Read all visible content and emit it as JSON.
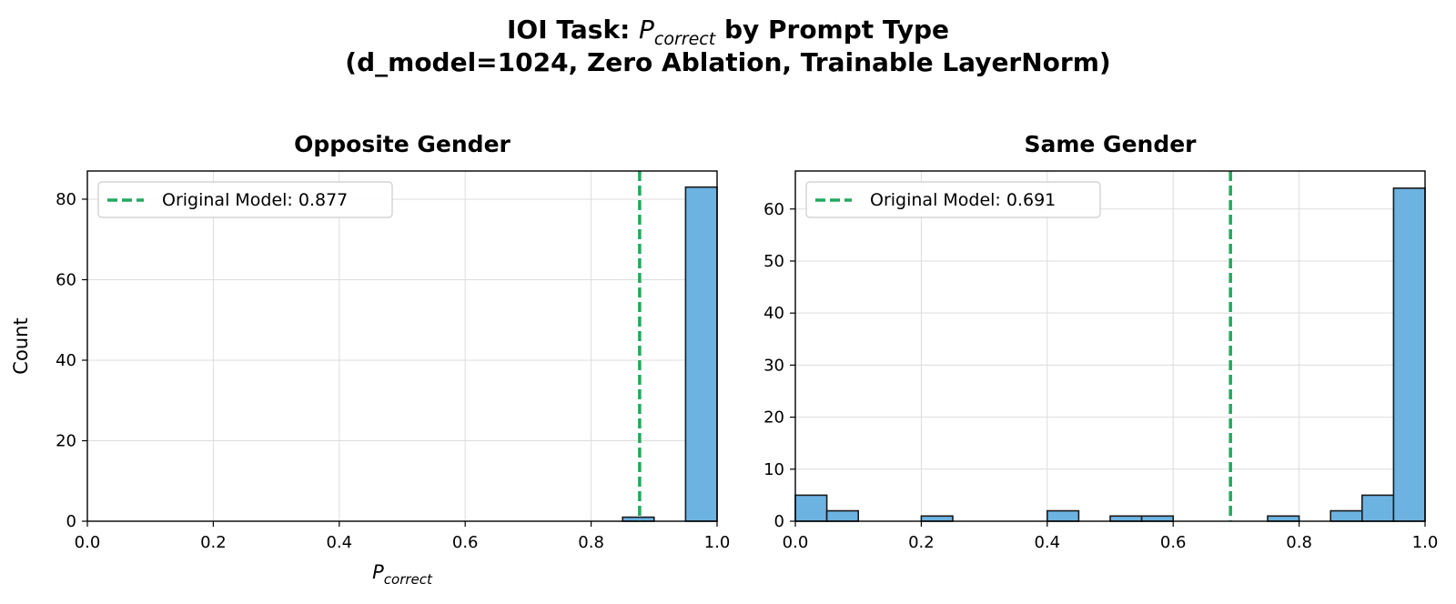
{
  "figure": {
    "title_line1_prefix": "IOI Task: ",
    "title_line1_math_base": "P",
    "title_line1_math_sub": "correct",
    "title_line1_suffix": " by Prompt Type",
    "title_line2": "(d_model=1024, Zero Ablation, Trainable LayerNorm)"
  },
  "colors": {
    "bar_fill": "#6db3e2",
    "bar_edge": "#1a1a1a",
    "reference_line": "#22a85e",
    "grid": "#dddddd"
  },
  "chart_data": [
    {
      "type": "bar",
      "subtype": "histogram",
      "title": "Opposite Gender",
      "xlabel_base": "P",
      "xlabel_sub": "correct",
      "ylabel": "Count",
      "xlim": [
        0.0,
        1.0
      ],
      "ylim": [
        0,
        87
      ],
      "xticks": [
        0.0,
        0.2,
        0.4,
        0.6,
        0.8,
        1.0
      ],
      "xtick_labels": [
        "0.0",
        "0.2",
        "0.4",
        "0.6",
        "0.8",
        "1.0"
      ],
      "yticks": [
        0,
        20,
        40,
        60,
        80
      ],
      "ytick_labels": [
        "0",
        "20",
        "40",
        "60",
        "80"
      ],
      "bin_width": 0.05,
      "bins": [
        {
          "start": 0.85,
          "count": 1
        },
        {
          "start": 0.95,
          "count": 83
        }
      ],
      "reference_line": {
        "x": 0.877,
        "label": "Original Model: 0.877"
      },
      "grid": true,
      "legend_position": "top-left"
    },
    {
      "type": "bar",
      "subtype": "histogram",
      "title": "Same Gender",
      "xlim": [
        0.0,
        1.0
      ],
      "ylim": [
        0,
        67.3
      ],
      "xticks": [
        0.0,
        0.2,
        0.4,
        0.6,
        0.8,
        1.0
      ],
      "xtick_labels": [
        "0.0",
        "0.2",
        "0.4",
        "0.6",
        "0.8",
        "1.0"
      ],
      "yticks": [
        0,
        10,
        20,
        30,
        40,
        50,
        60
      ],
      "ytick_labels": [
        "0",
        "10",
        "20",
        "30",
        "40",
        "50",
        "60"
      ],
      "bin_width": 0.05,
      "bins": [
        {
          "start": 0.0,
          "count": 5
        },
        {
          "start": 0.05,
          "count": 2
        },
        {
          "start": 0.2,
          "count": 1
        },
        {
          "start": 0.4,
          "count": 2
        },
        {
          "start": 0.5,
          "count": 1
        },
        {
          "start": 0.55,
          "count": 1
        },
        {
          "start": 0.75,
          "count": 1
        },
        {
          "start": 0.85,
          "count": 2
        },
        {
          "start": 0.9,
          "count": 5
        },
        {
          "start": 0.95,
          "count": 64
        }
      ],
      "reference_line": {
        "x": 0.691,
        "label": "Original Model: 0.691"
      },
      "grid": true,
      "legend_position": "top-left"
    }
  ]
}
